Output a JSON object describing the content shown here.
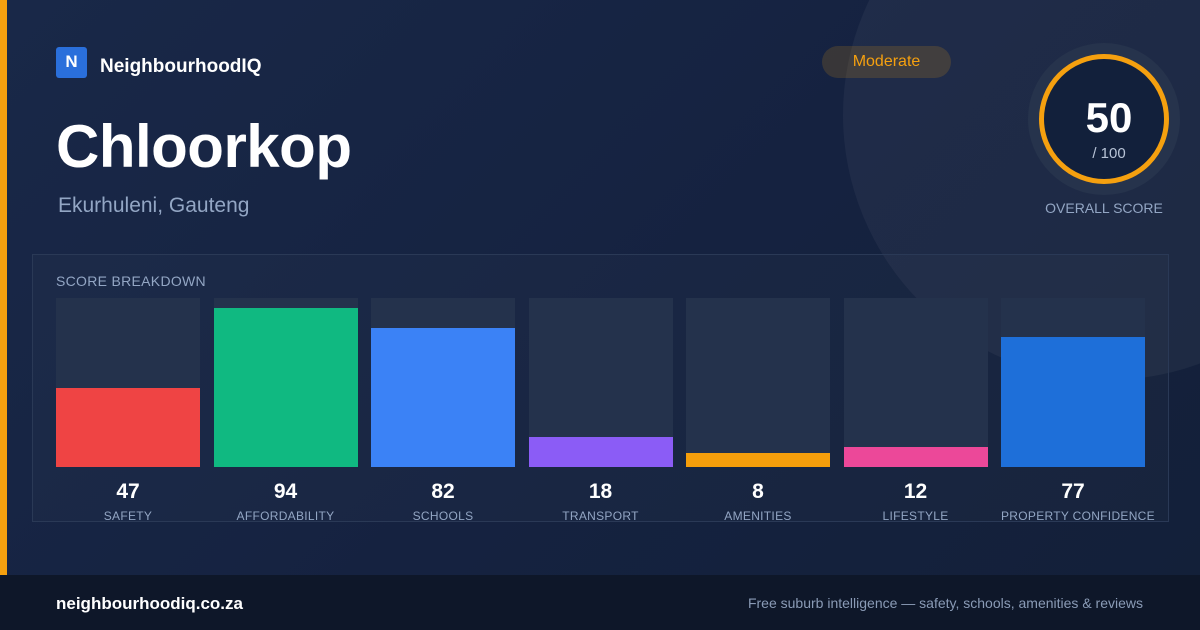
{
  "brand": {
    "logo_letter": "N",
    "name": "NeighbourhoodIQ"
  },
  "suburb": {
    "name": "Chloorkop",
    "region": "Ekurhuleni, Gauteng"
  },
  "rating_badge": {
    "label": "Moderate",
    "color": "#f5a00f"
  },
  "overall": {
    "score": "50",
    "max": "/ 100",
    "caption": "OVERALL SCORE"
  },
  "breakdown": {
    "title": "SCORE BREAKDOWN"
  },
  "chart_data": {
    "type": "bar",
    "title": "SCORE BREAKDOWN",
    "categories": [
      "SAFETY",
      "AFFORDABILITY",
      "SCHOOLS",
      "TRANSPORT",
      "AMENITIES",
      "LIFESTYLE",
      "PROPERTY CONFIDENCE"
    ],
    "values": [
      47,
      94,
      82,
      18,
      8,
      12,
      77
    ],
    "colors": [
      "#ef4444",
      "#10b981",
      "#3b82f6",
      "#8b5cf6",
      "#f59e0b",
      "#ec4899",
      "#1e6fd9"
    ],
    "ylim": [
      0,
      100
    ],
    "grid": false,
    "legend": "none"
  },
  "footer": {
    "domain": "neighbourhoodiq.co.za",
    "tagline": "Free suburb intelligence — safety, schools, amenities & reviews"
  }
}
